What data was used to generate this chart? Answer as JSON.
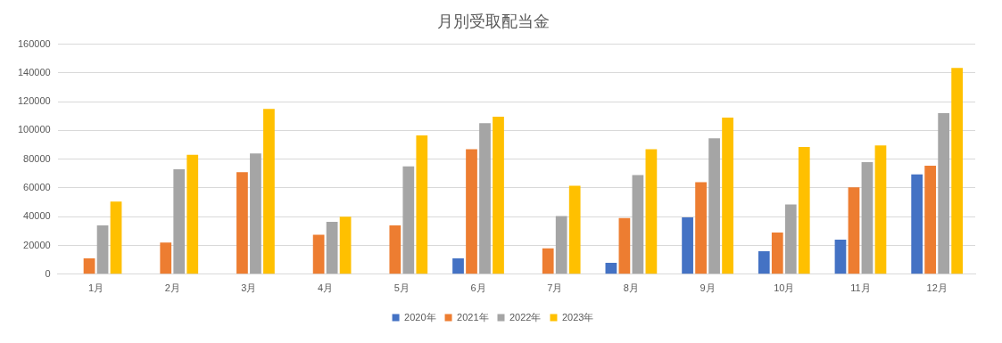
{
  "chart_data": {
    "type": "bar",
    "title": "月別受取配当金",
    "categories": [
      "1月",
      "2月",
      "3月",
      "4月",
      "5月",
      "6月",
      "7月",
      "8月",
      "9月",
      "10月",
      "11月",
      "12月"
    ],
    "series": [
      {
        "name": "2020年",
        "color": "#4472c4",
        "values": [
          null,
          null,
          null,
          null,
          null,
          11000,
          null,
          8000,
          39500,
          16000,
          24000,
          69500
        ]
      },
      {
        "name": "2021年",
        "color": "#ed7d31",
        "values": [
          11000,
          22000,
          71000,
          27500,
          34000,
          87000,
          18000,
          39000,
          64000,
          29000,
          60500,
          75500
        ]
      },
      {
        "name": "2022年",
        "color": "#a5a5a5",
        "values": [
          34000,
          73000,
          84000,
          36500,
          75000,
          105000,
          40500,
          69000,
          94500,
          48500,
          78000,
          112000
        ]
      },
      {
        "name": "2023年",
        "color": "#ffc000",
        "values": [
          50500,
          83000,
          115000,
          40000,
          96500,
          109500,
          61500,
          87000,
          109000,
          88500,
          89500,
          143500
        ]
      }
    ],
    "ylim": [
      0,
      160000
    ],
    "yticks": [
      0,
      20000,
      40000,
      60000,
      80000,
      100000,
      120000,
      140000,
      160000
    ],
    "grid": "y",
    "legend": "bottom"
  }
}
